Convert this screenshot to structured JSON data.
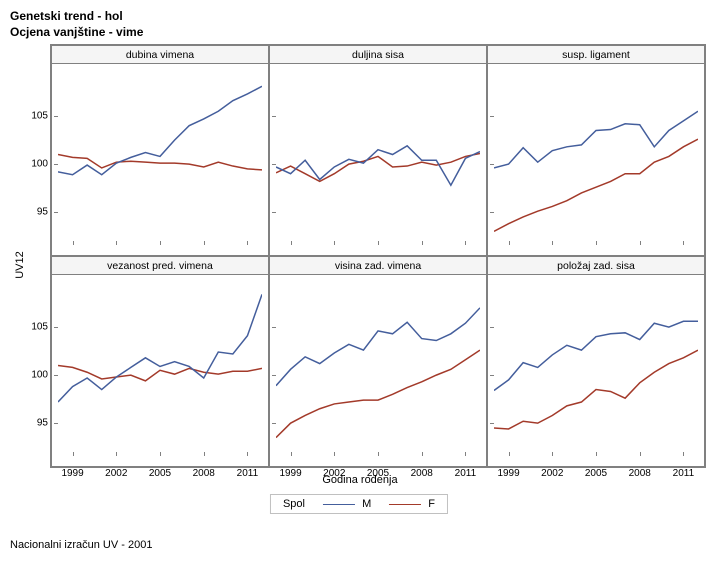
{
  "titles": {
    "line1": "Genetski trend - hol",
    "line2": "Ocjena vanjštine - vime"
  },
  "axes": {
    "ylabel": "UV12",
    "xlabel": "Godina rođenja",
    "ylim": [
      92,
      110
    ],
    "yticks": [
      95,
      100,
      105
    ],
    "xlim": [
      1998,
      2012
    ],
    "xticks": [
      1999,
      2002,
      2005,
      2008,
      2011
    ]
  },
  "colors": {
    "m": "#445e9c",
    "f": "#a33a2a",
    "border": "#808080",
    "grid_bg": "#ffffff"
  },
  "legend": {
    "title": "Spol",
    "items": [
      {
        "label": "M",
        "color_key": "m"
      },
      {
        "label": "F",
        "color_key": "f"
      }
    ]
  },
  "line_width": 1.5,
  "years": [
    1998,
    1999,
    2000,
    2001,
    2002,
    2003,
    2004,
    2005,
    2006,
    2007,
    2008,
    2009,
    2010,
    2011,
    2012
  ],
  "panels": [
    {
      "title": "dubina vimena",
      "m": [
        99.2,
        98.9,
        99.9,
        98.9,
        100.1,
        100.7,
        101.2,
        100.8,
        102.5,
        104.0,
        104.7,
        105.5,
        106.6,
        107.3,
        108.1
      ],
      "f": [
        101.0,
        100.7,
        100.6,
        99.6,
        100.2,
        100.3,
        100.2,
        100.1,
        100.1,
        100.0,
        99.7,
        100.2,
        99.8,
        99.5,
        99.4
      ]
    },
    {
      "title": "duljina sisa",
      "m": [
        99.7,
        99.0,
        100.4,
        98.4,
        99.7,
        100.5,
        100.1,
        101.5,
        101.0,
        101.9,
        100.4,
        100.4,
        97.8,
        100.6,
        101.3
      ],
      "f": [
        99.1,
        99.8,
        99.0,
        98.2,
        99.0,
        100.0,
        100.3,
        100.8,
        99.7,
        99.8,
        100.2,
        99.9,
        100.2,
        100.8,
        101.1
      ]
    },
    {
      "title": "susp. ligament",
      "m": [
        99.6,
        100.0,
        101.7,
        100.2,
        101.4,
        101.8,
        102.0,
        103.5,
        103.6,
        104.2,
        104.1,
        101.8,
        103.5,
        104.5,
        105.5
      ],
      "f": [
        93.0,
        93.8,
        94.5,
        95.1,
        95.6,
        96.2,
        97.0,
        97.6,
        98.2,
        99.0,
        99.0,
        100.2,
        100.8,
        101.8,
        102.6
      ]
    },
    {
      "title": "vezanost pred. vimena",
      "m": [
        97.2,
        98.8,
        99.7,
        98.5,
        99.8,
        100.8,
        101.8,
        100.9,
        101.4,
        100.9,
        99.7,
        102.4,
        102.2,
        104.1,
        108.4
      ],
      "f": [
        101.0,
        100.8,
        100.3,
        99.6,
        99.8,
        100.0,
        99.4,
        100.5,
        100.1,
        100.7,
        100.3,
        100.1,
        100.4,
        100.4,
        100.7
      ]
    },
    {
      "title": "visina zad. vimena",
      "m": [
        98.9,
        100.6,
        101.9,
        101.2,
        102.3,
        103.2,
        102.6,
        104.6,
        104.3,
        105.5,
        103.8,
        103.6,
        104.3,
        105.4,
        107.0
      ],
      "f": [
        93.5,
        95.0,
        95.8,
        96.5,
        97.0,
        97.2,
        97.4,
        97.4,
        98.0,
        98.7,
        99.3,
        100.0,
        100.6,
        101.6,
        102.6
      ]
    },
    {
      "title": "položaj zad. sisa",
      "m": [
        98.4,
        99.5,
        101.3,
        100.8,
        102.1,
        103.1,
        102.6,
        104.0,
        104.3,
        104.4,
        103.7,
        105.4,
        105.0,
        105.6,
        105.6
      ],
      "f": [
        94.5,
        94.4,
        95.2,
        95.0,
        95.8,
        96.8,
        97.2,
        98.5,
        98.3,
        97.6,
        99.2,
        100.3,
        101.2,
        101.8,
        102.6
      ]
    }
  ],
  "footer": "Nacionalni izračun UV - 2001"
}
